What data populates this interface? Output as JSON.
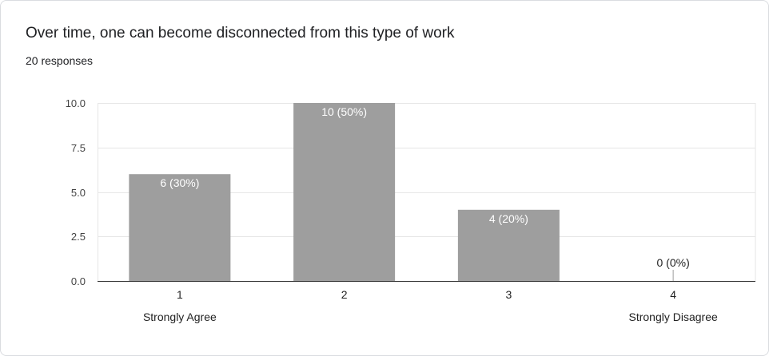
{
  "card": {
    "title": "Over time, one can become disconnected from this type of work",
    "subtitle": "20 responses"
  },
  "colors": {
    "bar": "#9e9e9e",
    "grid": "#e6e6e6",
    "axis": "#333333",
    "label_inside": "#ffffff",
    "label_outside": "#222222"
  },
  "chart_data": {
    "type": "bar",
    "categories": [
      "1",
      "2",
      "3",
      "4"
    ],
    "category_sublabels": [
      "Strongly Agree",
      "",
      "",
      "Strongly Disagree"
    ],
    "values": [
      6,
      10,
      4,
      0
    ],
    "data_labels": [
      "6 (30%)",
      "10 (50%)",
      "4 (20%)",
      "0 (0%)"
    ],
    "yticks": [
      "0.0",
      "2.5",
      "5.0",
      "7.5",
      "10.0"
    ],
    "ylim": [
      0,
      10
    ],
    "grid": true,
    "legend": "none"
  }
}
